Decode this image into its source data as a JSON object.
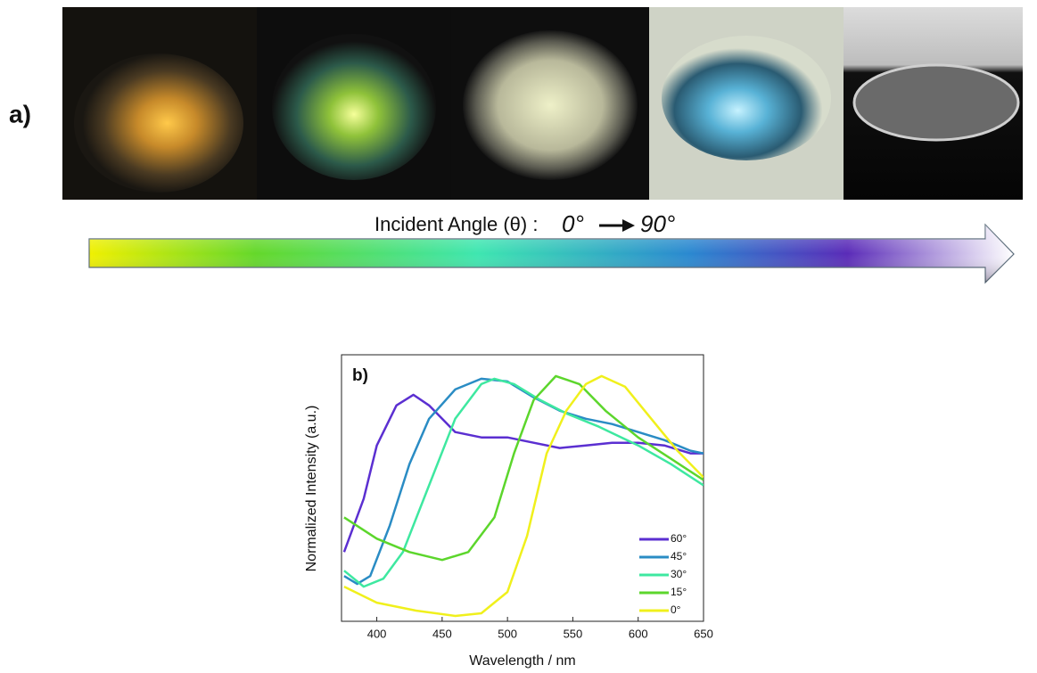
{
  "panel_a": {
    "label": "a)",
    "arrow_caption": "Incident Angle (θ) :",
    "angle_start": "0°",
    "angle_end": "90°"
  },
  "chart_data": {
    "type": "line",
    "panel_label": "b)",
    "x_label": "Wavelength / nm",
    "y_label": "Normalized Intensity (a.u.)",
    "xlim": [
      373,
      650
    ],
    "ylim": [
      0,
      1
    ],
    "xticks": [
      400,
      450,
      500,
      550,
      600,
      650
    ],
    "legend": "lower-right",
    "series": [
      {
        "name": "60°",
        "color": "#5b2fd1",
        "x": [
          375,
          390,
          400,
          415,
          428,
          440,
          460,
          480,
          500,
          520,
          540,
          560,
          580,
          600,
          620,
          640,
          650
        ],
        "values": [
          0.26,
          0.46,
          0.66,
          0.81,
          0.85,
          0.81,
          0.71,
          0.69,
          0.69,
          0.67,
          0.65,
          0.66,
          0.67,
          0.67,
          0.66,
          0.63,
          0.63
        ]
      },
      {
        "name": "45°",
        "color": "#2a8cc4",
        "x": [
          375,
          385,
          395,
          410,
          425,
          440,
          460,
          480,
          500,
          520,
          540,
          560,
          580,
          600,
          620,
          640,
          650
        ],
        "values": [
          0.17,
          0.14,
          0.17,
          0.36,
          0.59,
          0.76,
          0.87,
          0.91,
          0.9,
          0.84,
          0.79,
          0.76,
          0.74,
          0.71,
          0.68,
          0.64,
          0.63
        ]
      },
      {
        "name": "30°",
        "color": "#3ee8a0",
        "x": [
          375,
          390,
          405,
          420,
          440,
          460,
          480,
          490,
          505,
          525,
          545,
          570,
          600,
          625,
          650
        ],
        "values": [
          0.19,
          0.13,
          0.16,
          0.26,
          0.51,
          0.76,
          0.89,
          0.91,
          0.89,
          0.83,
          0.78,
          0.73,
          0.66,
          0.59,
          0.51
        ]
      },
      {
        "name": "15°",
        "color": "#5cd62c",
        "x": [
          375,
          400,
          425,
          450,
          470,
          490,
          505,
          520,
          537,
          555,
          575,
          600,
          625,
          650
        ],
        "values": [
          0.39,
          0.31,
          0.26,
          0.23,
          0.26,
          0.39,
          0.63,
          0.83,
          0.92,
          0.89,
          0.79,
          0.69,
          0.61,
          0.53
        ]
      },
      {
        "name": "0°",
        "color": "#f0f01c",
        "x": [
          375,
          400,
          430,
          460,
          480,
          500,
          515,
          530,
          545,
          560,
          572,
          590,
          610,
          630,
          650
        ],
        "values": [
          0.13,
          0.07,
          0.04,
          0.02,
          0.03,
          0.11,
          0.32,
          0.63,
          0.79,
          0.89,
          0.92,
          0.88,
          0.76,
          0.64,
          0.54
        ]
      }
    ]
  }
}
